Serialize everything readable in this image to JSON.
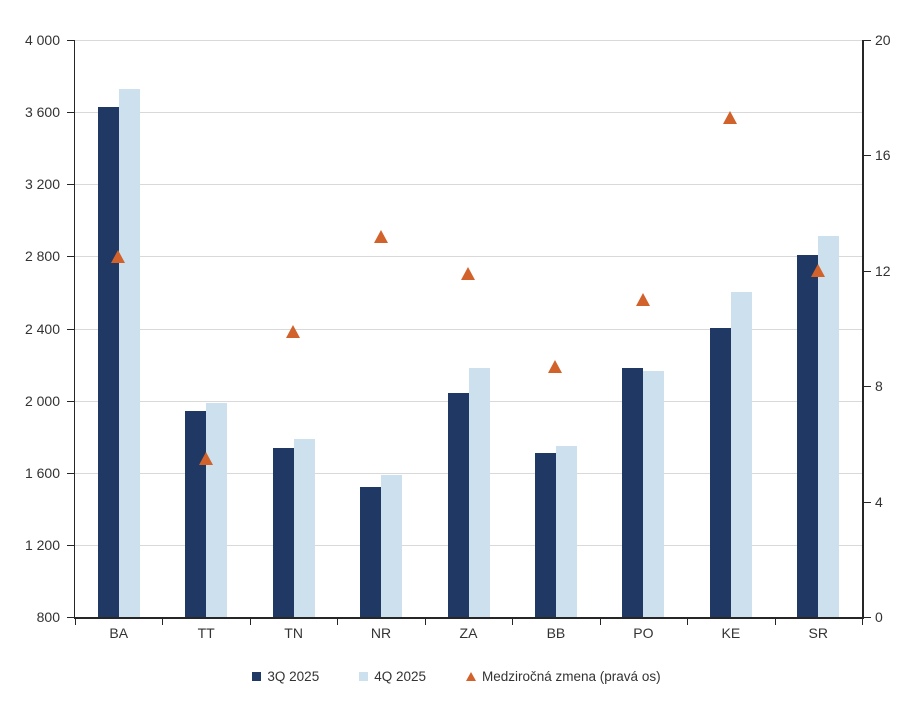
{
  "colors": {
    "bar_q3": "#1F3864",
    "bar_q4": "#CDE0ED",
    "marker_yoy": "#D2622B",
    "gridline": "#D9D9D9",
    "axis": "#262626",
    "text": "#333333"
  },
  "chart_data": {
    "type": "bar",
    "subtype": "grouped bars with scatter triangle overlay on secondary axis",
    "categories": [
      "BA",
      "TT",
      "TN",
      "NR",
      "ZA",
      "BB",
      "PO",
      "KE",
      "SR"
    ],
    "series": [
      {
        "name": "3Q 2025",
        "type": "bar",
        "axis": "left",
        "color": "#1F3864",
        "values": [
          3630,
          1940,
          1740,
          1520,
          2045,
          1710,
          2180,
          2405,
          2810
        ]
      },
      {
        "name": "4Q 2025",
        "type": "bar",
        "axis": "left",
        "color": "#CDE0ED",
        "values": [
          3730,
          1985,
          1785,
          1590,
          2180,
          1750,
          2165,
          2605,
          2915
        ]
      },
      {
        "name": "Medziročná zmena (pravá os)",
        "type": "scatter",
        "marker": "triangle-up",
        "axis": "right",
        "color": "#D2622B",
        "values": [
          12.5,
          5.5,
          9.9,
          13.2,
          11.9,
          8.7,
          11.0,
          17.3,
          12.0
        ]
      }
    ],
    "left_axis": {
      "min": 800,
      "max": 4000,
      "step": 400,
      "tick_labels": [
        "800",
        "1 200",
        "1 600",
        "2 000",
        "2 400",
        "2 800",
        "3 200",
        "3 600",
        "4 000"
      ]
    },
    "right_axis": {
      "min": 0,
      "max": 20,
      "step": 4,
      "tick_labels": [
        "0",
        "4",
        "8",
        "12",
        "16",
        "20"
      ]
    },
    "grid": true,
    "legend_position": "bottom",
    "title": ""
  }
}
